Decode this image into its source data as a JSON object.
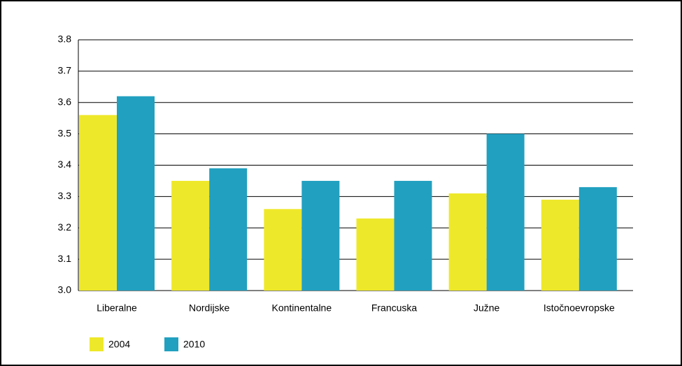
{
  "chart_data": {
    "type": "bar",
    "categories": [
      "Liberalne",
      "Nordijske",
      "Kontinentalne",
      "Francuska",
      "Južne",
      "Istočnoevropske"
    ],
    "series": [
      {
        "name": "2004",
        "color": "#eee82a",
        "values": [
          3.56,
          3.35,
          3.26,
          3.23,
          3.31,
          3.29
        ]
      },
      {
        "name": "2010",
        "color": "#22a0c0",
        "values": [
          3.62,
          3.39,
          3.35,
          3.35,
          3.5,
          3.33
        ]
      }
    ],
    "ylim": [
      3.0,
      3.8
    ],
    "yticks": [
      {
        "value": 3.0,
        "label": "3.0"
      },
      3.1,
      3.2,
      3.3,
      3.4,
      3.5,
      3.6,
      3.7,
      3.8
    ],
    "grid": true,
    "legend": "bottom-left"
  }
}
